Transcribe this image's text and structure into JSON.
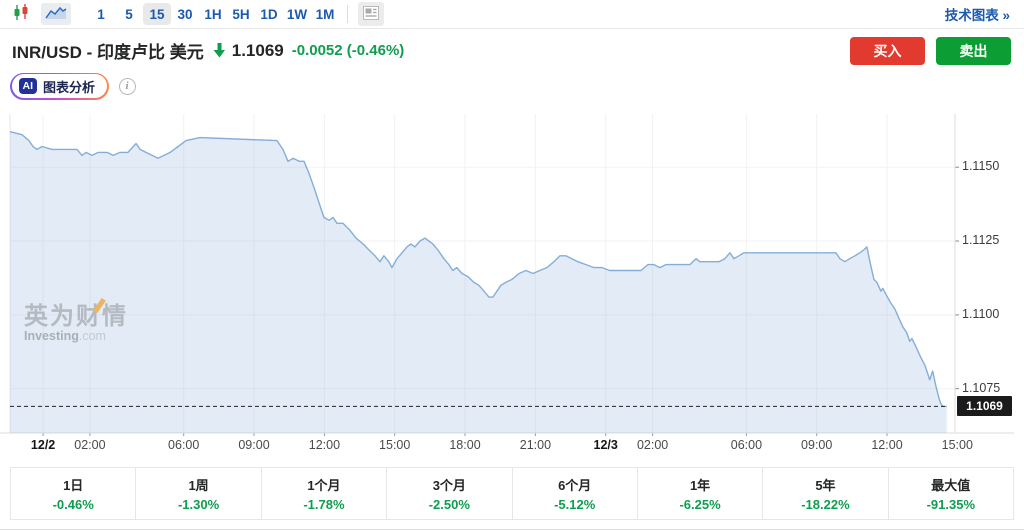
{
  "toolbar": {
    "icons": [
      "candlestick-icon",
      "area-chart-icon",
      "news-layout-icon"
    ],
    "selected_chart_type": "area",
    "timeframes": [
      {
        "label": "1",
        "active": false
      },
      {
        "label": "5",
        "active": false
      },
      {
        "label": "15",
        "active": true
      },
      {
        "label": "30",
        "active": false
      },
      {
        "label": "1H",
        "active": false
      },
      {
        "label": "5H",
        "active": false
      },
      {
        "label": "1D",
        "active": false
      },
      {
        "label": "1W",
        "active": false
      },
      {
        "label": "1M",
        "active": false
      }
    ],
    "technical_chart_link": "技术图表 »"
  },
  "header": {
    "title": "INR/USD - 印度卢比 美元",
    "direction": "down",
    "price": "1.1069",
    "change": "-0.0052 (-0.46%)",
    "buy_label": "买入",
    "sell_label": "卖出"
  },
  "ai_row": {
    "badge": "AI",
    "label": "图表分析",
    "info_icon": "info-icon"
  },
  "watermark": {
    "line1": "英为财情",
    "line2": "Investing",
    "line2_suffix": ".com"
  },
  "colors": {
    "accent_blue": "#1c5ab0",
    "green": "#0f9d4f",
    "buy_red": "#e23a2e",
    "sell_green": "#0c9e35",
    "line_blue": "#85add8",
    "area_fill": "rgba(143,180,218,0.25)",
    "grid": "#f2f2f2",
    "axis": "#dcdcdc",
    "dashed": "#222222"
  },
  "chart_data": {
    "type": "area",
    "title": "INR/USD 15-minute chart",
    "interval": "15m",
    "x_unit": "hours since 12/2 00:00",
    "x_range": [
      -1.41,
      38.9
    ],
    "y_range": [
      1.106,
      1.1168
    ],
    "grid": true,
    "y_ticks": [
      {
        "label": "1.1150",
        "value": 1.115
      },
      {
        "label": "1.1125",
        "value": 1.1125
      },
      {
        "label": "1.1100",
        "value": 1.11
      },
      {
        "label": "1.1075",
        "value": 1.1075
      }
    ],
    "x_ticks": [
      {
        "h": 0,
        "label": "12/2",
        "bold": true
      },
      {
        "h": 2,
        "label": "02:00",
        "bold": false
      },
      {
        "h": 6,
        "label": "06:00",
        "bold": false
      },
      {
        "h": 9,
        "label": "09:00",
        "bold": false
      },
      {
        "h": 12,
        "label": "12:00",
        "bold": false
      },
      {
        "h": 15,
        "label": "15:00",
        "bold": false
      },
      {
        "h": 18,
        "label": "18:00",
        "bold": false
      },
      {
        "h": 21,
        "label": "21:00",
        "bold": false
      },
      {
        "h": 24,
        "label": "12/3",
        "bold": true
      },
      {
        "h": 26,
        "label": "02:00",
        "bold": false
      },
      {
        "h": 30,
        "label": "06:00",
        "bold": false
      },
      {
        "h": 33,
        "label": "09:00",
        "bold": false
      },
      {
        "h": 36,
        "label": "12:00",
        "bold": false
      },
      {
        "h": 39,
        "label": "15:00",
        "bold": false
      }
    ],
    "last_price": 1.1069,
    "last_price_label": "1.1069",
    "points": [
      [
        -1.41,
        1.1162
      ],
      [
        -0.9,
        1.1161
      ],
      [
        -0.6,
        1.1159
      ],
      [
        -0.43,
        1.1157
      ],
      [
        -0.26,
        1.1156
      ],
      [
        -0.04,
        1.1157
      ],
      [
        0.38,
        1.1156
      ],
      [
        0.81,
        1.1156
      ],
      [
        1.15,
        1.1156
      ],
      [
        1.45,
        1.1156
      ],
      [
        1.66,
        1.1154
      ],
      [
        1.83,
        1.1155
      ],
      [
        2.09,
        1.1154
      ],
      [
        2.35,
        1.1155
      ],
      [
        2.73,
        1.1155
      ],
      [
        2.99,
        1.1154
      ],
      [
        3.28,
        1.1155
      ],
      [
        3.62,
        1.1155
      ],
      [
        3.97,
        1.1158
      ],
      [
        4.14,
        1.1156
      ],
      [
        4.39,
        1.1155
      ],
      [
        4.65,
        1.1154
      ],
      [
        4.9,
        1.1153
      ],
      [
        5.16,
        1.1154
      ],
      [
        5.42,
        1.1155
      ],
      [
        5.76,
        1.1157
      ],
      [
        6.1,
        1.1159
      ],
      [
        6.7,
        1.116
      ],
      [
        9.98,
        1.1159
      ],
      [
        10.23,
        1.1156
      ],
      [
        10.45,
        1.1152
      ],
      [
        10.66,
        1.1153
      ],
      [
        10.92,
        1.1152
      ],
      [
        11.13,
        1.1152
      ],
      [
        11.34,
        1.1148
      ],
      [
        11.56,
        1.1143
      ],
      [
        11.77,
        1.1138
      ],
      [
        11.98,
        1.1133
      ],
      [
        12.2,
        1.1132
      ],
      [
        12.37,
        1.1133
      ],
      [
        12.54,
        1.1131
      ],
      [
        12.79,
        1.1131
      ],
      [
        13.05,
        1.1129
      ],
      [
        13.35,
        1.1126
      ],
      [
        13.65,
        1.1124
      ],
      [
        13.9,
        1.1122
      ],
      [
        14.16,
        1.112
      ],
      [
        14.37,
        1.1118
      ],
      [
        14.54,
        1.112
      ],
      [
        14.75,
        1.1118
      ],
      [
        14.88,
        1.1116
      ],
      [
        15.1,
        1.1119
      ],
      [
        15.31,
        1.1121
      ],
      [
        15.52,
        1.1123
      ],
      [
        15.69,
        1.1124
      ],
      [
        15.86,
        1.1123
      ],
      [
        16.08,
        1.1125
      ],
      [
        16.29,
        1.1126
      ],
      [
        16.46,
        1.1125
      ],
      [
        16.63,
        1.1124
      ],
      [
        16.84,
        1.1122
      ],
      [
        17.1,
        1.1119
      ],
      [
        17.31,
        1.1117
      ],
      [
        17.48,
        1.1115
      ],
      [
        17.65,
        1.1116
      ],
      [
        17.87,
        1.1114
      ],
      [
        18.12,
        1.1113
      ],
      [
        18.38,
        1.1111
      ],
      [
        18.59,
        1.111
      ],
      [
        18.81,
        1.1108
      ],
      [
        19.02,
        1.1106
      ],
      [
        19.19,
        1.1106
      ],
      [
        19.36,
        1.1108
      ],
      [
        19.53,
        1.111
      ],
      [
        19.74,
        1.1111
      ],
      [
        20,
        1.1112
      ],
      [
        20.3,
        1.1114
      ],
      [
        20.6,
        1.1115
      ],
      [
        20.9,
        1.1114
      ],
      [
        21.19,
        1.1115
      ],
      [
        21.49,
        1.1116
      ],
      [
        21.79,
        1.1118
      ],
      [
        22.05,
        1.112
      ],
      [
        22.3,
        1.112
      ],
      [
        22.56,
        1.1119
      ],
      [
        22.81,
        1.1118
      ],
      [
        23.16,
        1.1117
      ],
      [
        23.5,
        1.1116
      ],
      [
        23.84,
        1.1116
      ],
      [
        24.18,
        1.1115
      ],
      [
        24.52,
        1.1115
      ],
      [
        24.86,
        1.1115
      ],
      [
        25.2,
        1.1115
      ],
      [
        25.5,
        1.1115
      ],
      [
        25.8,
        1.1117
      ],
      [
        26.06,
        1.1117
      ],
      [
        26.31,
        1.1116
      ],
      [
        26.57,
        1.1117
      ],
      [
        26.82,
        1.1117
      ],
      [
        27.08,
        1.1117
      ],
      [
        27.33,
        1.1117
      ],
      [
        27.59,
        1.1117
      ],
      [
        27.85,
        1.1119
      ],
      [
        28.02,
        1.1118
      ],
      [
        28.23,
        1.1118
      ],
      [
        28.53,
        1.1118
      ],
      [
        28.83,
        1.1118
      ],
      [
        29.08,
        1.1119
      ],
      [
        29.3,
        1.1121
      ],
      [
        29.47,
        1.1119
      ],
      [
        29.68,
        1.112
      ],
      [
        29.89,
        1.1121
      ],
      [
        30.58,
        1.1121
      ],
      [
        31.43,
        1.1121
      ],
      [
        32.28,
        1.1121
      ],
      [
        33.35,
        1.1121
      ],
      [
        33.6,
        1.1121
      ],
      [
        33.82,
        1.1121
      ],
      [
        33.99,
        1.1119
      ],
      [
        34.2,
        1.1118
      ],
      [
        34.41,
        1.1119
      ],
      [
        34.63,
        1.112
      ],
      [
        34.84,
        1.1121
      ],
      [
        35.01,
        1.1122
      ],
      [
        35.14,
        1.1123
      ],
      [
        35.27,
        1.1118
      ],
      [
        35.44,
        1.1112
      ],
      [
        35.57,
        1.1111
      ],
      [
        35.74,
        1.1108
      ],
      [
        35.82,
        1.1109
      ],
      [
        35.95,
        1.1107
      ],
      [
        36.16,
        1.1104
      ],
      [
        36.33,
        1.1102
      ],
      [
        36.5,
        1.1099
      ],
      [
        36.67,
        1.1096
      ],
      [
        36.84,
        1.1094
      ],
      [
        36.97,
        1.1091
      ],
      [
        37.06,
        1.1092
      ],
      [
        37.19,
        1.109
      ],
      [
        37.36,
        1.1087
      ],
      [
        37.48,
        1.1085
      ],
      [
        37.61,
        1.1083
      ],
      [
        37.74,
        1.108
      ],
      [
        37.82,
        1.1078
      ],
      [
        37.95,
        1.1081
      ],
      [
        38.08,
        1.1076
      ],
      [
        38.21,
        1.1072
      ],
      [
        38.29,
        1.107
      ],
      [
        38.38,
        1.1069
      ],
      [
        38.55,
        1.1069
      ]
    ]
  },
  "performance": {
    "cells": [
      {
        "label": "1日",
        "value": "-0.46%"
      },
      {
        "label": "1周",
        "value": "-1.30%"
      },
      {
        "label": "1个月",
        "value": "-1.78%"
      },
      {
        "label": "3个月",
        "value": "-2.50%"
      },
      {
        "label": "6个月",
        "value": "-5.12%"
      },
      {
        "label": "1年",
        "value": "-6.25%"
      },
      {
        "label": "5年",
        "value": "-18.22%"
      },
      {
        "label": "最大值",
        "value": "-91.35%"
      }
    ]
  }
}
